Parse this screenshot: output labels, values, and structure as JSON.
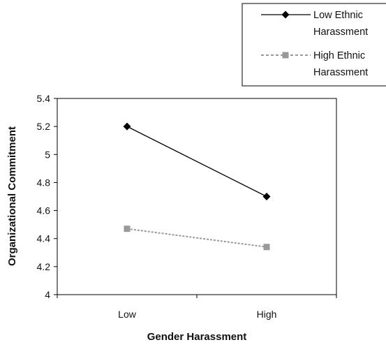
{
  "chart_data": {
    "type": "line",
    "title": "",
    "xlabel": "Gender Harassment",
    "ylabel": "Organizational Commitment",
    "categories": [
      "Low",
      "High"
    ],
    "ylim": [
      4,
      5.4
    ],
    "yticks": [
      "4",
      "4.2",
      "4.4",
      "4.6",
      "4.8",
      "5",
      "5.2",
      "5.4"
    ],
    "grid": false,
    "legend_position": "top-right",
    "series": [
      {
        "name": "Low Ethnic Harassment",
        "legend_lines": [
          "Low Ethnic",
          "Harassment"
        ],
        "values": [
          5.2,
          4.7
        ],
        "color": "#000000",
        "marker": "diamond",
        "line_style": "solid"
      },
      {
        "name": "High Ethnic Harassment",
        "legend_lines": [
          "High Ethnic",
          "Harassment"
        ],
        "values": [
          4.47,
          4.34
        ],
        "color": "#999999",
        "marker": "square",
        "line_style": "dotted"
      }
    ]
  }
}
